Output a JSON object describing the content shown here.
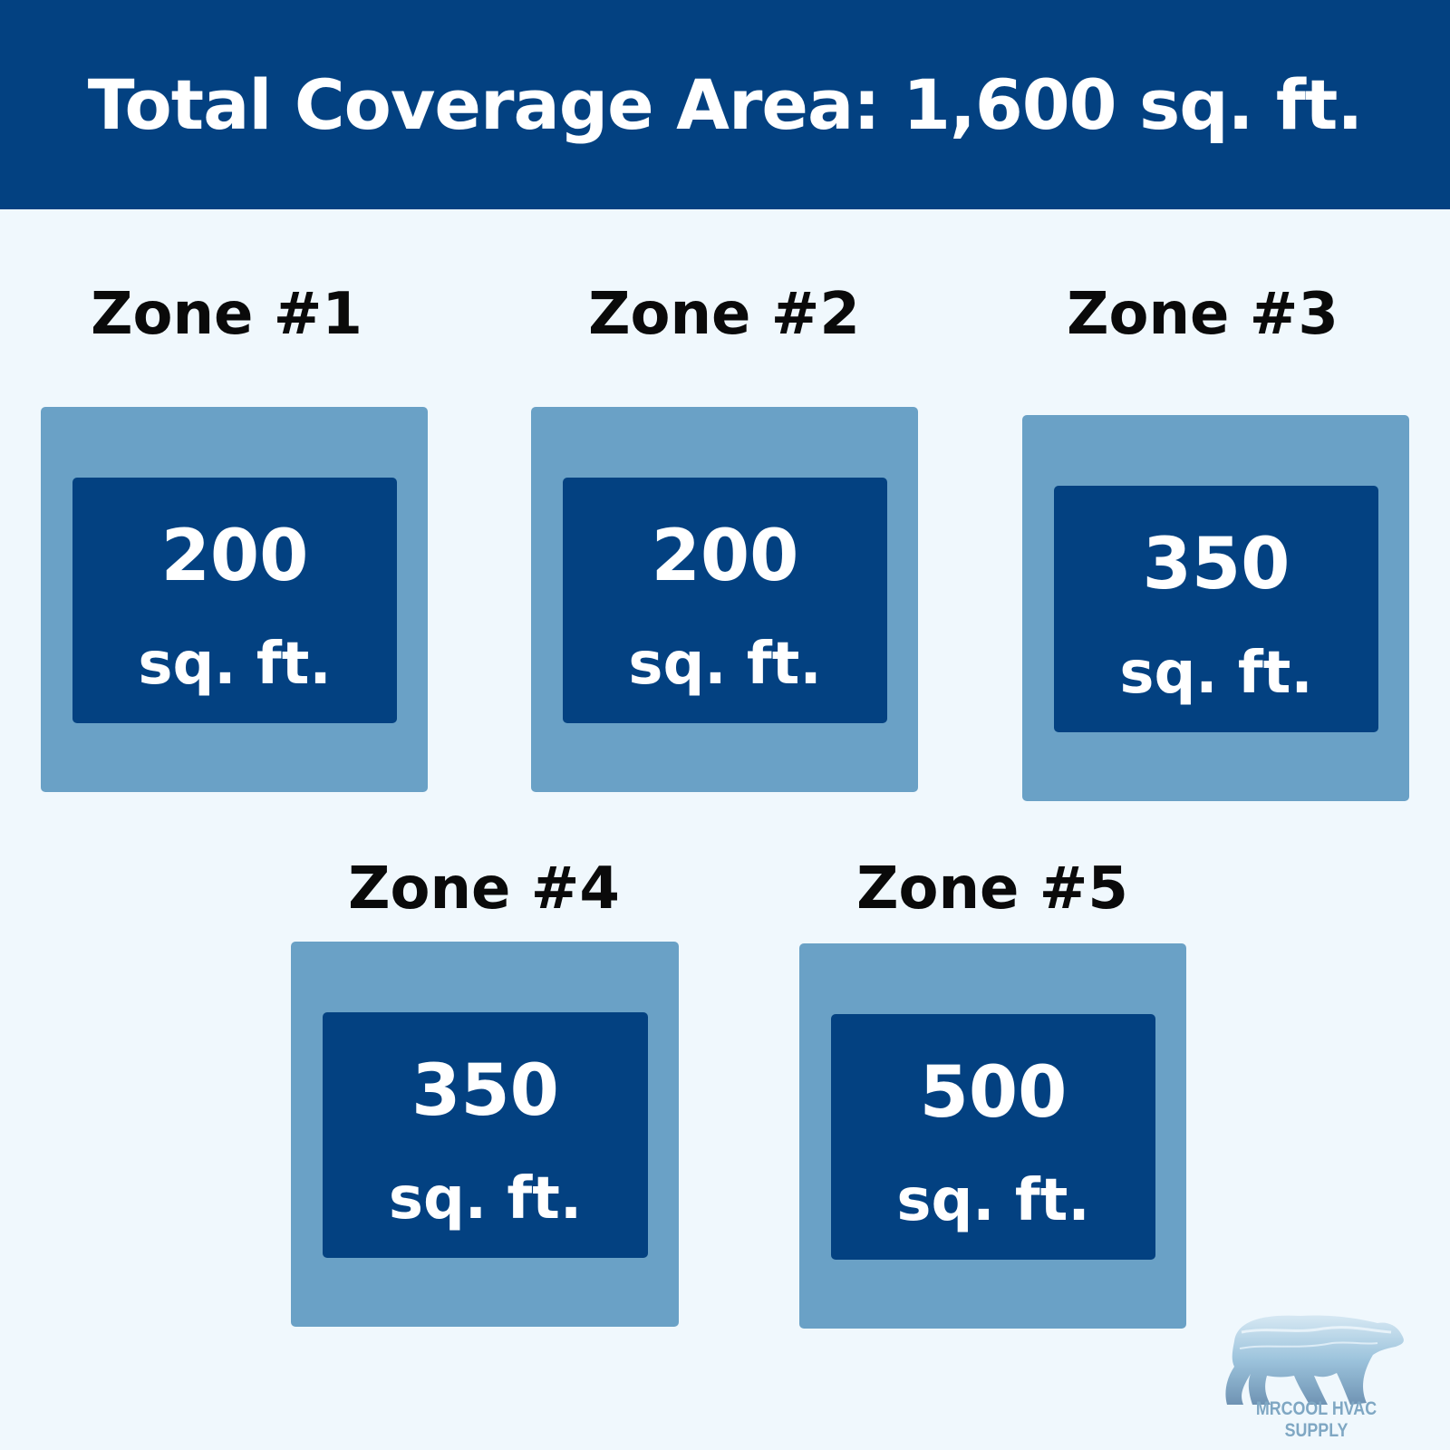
{
  "header": {
    "title": "Total Coverage Area: 1,600 sq. ft."
  },
  "zones": [
    {
      "label": "Zone #1",
      "value": "200",
      "unit": "sq. ft."
    },
    {
      "label": "Zone #2",
      "value": "200",
      "unit": "sq. ft."
    },
    {
      "label": "Zone #3",
      "value": "350",
      "unit": "sq. ft."
    },
    {
      "label": "Zone #4",
      "value": "350",
      "unit": "sq. ft."
    },
    {
      "label": "Zone #5",
      "value": "500",
      "unit": "sq. ft."
    }
  ],
  "logo": {
    "text": "MRCOOL HVAC SUPPLY"
  },
  "colors": {
    "header": "#034181",
    "background": "#f0f8fd",
    "zone_outer": "#6aa1c6",
    "zone_inner": "#034181"
  }
}
